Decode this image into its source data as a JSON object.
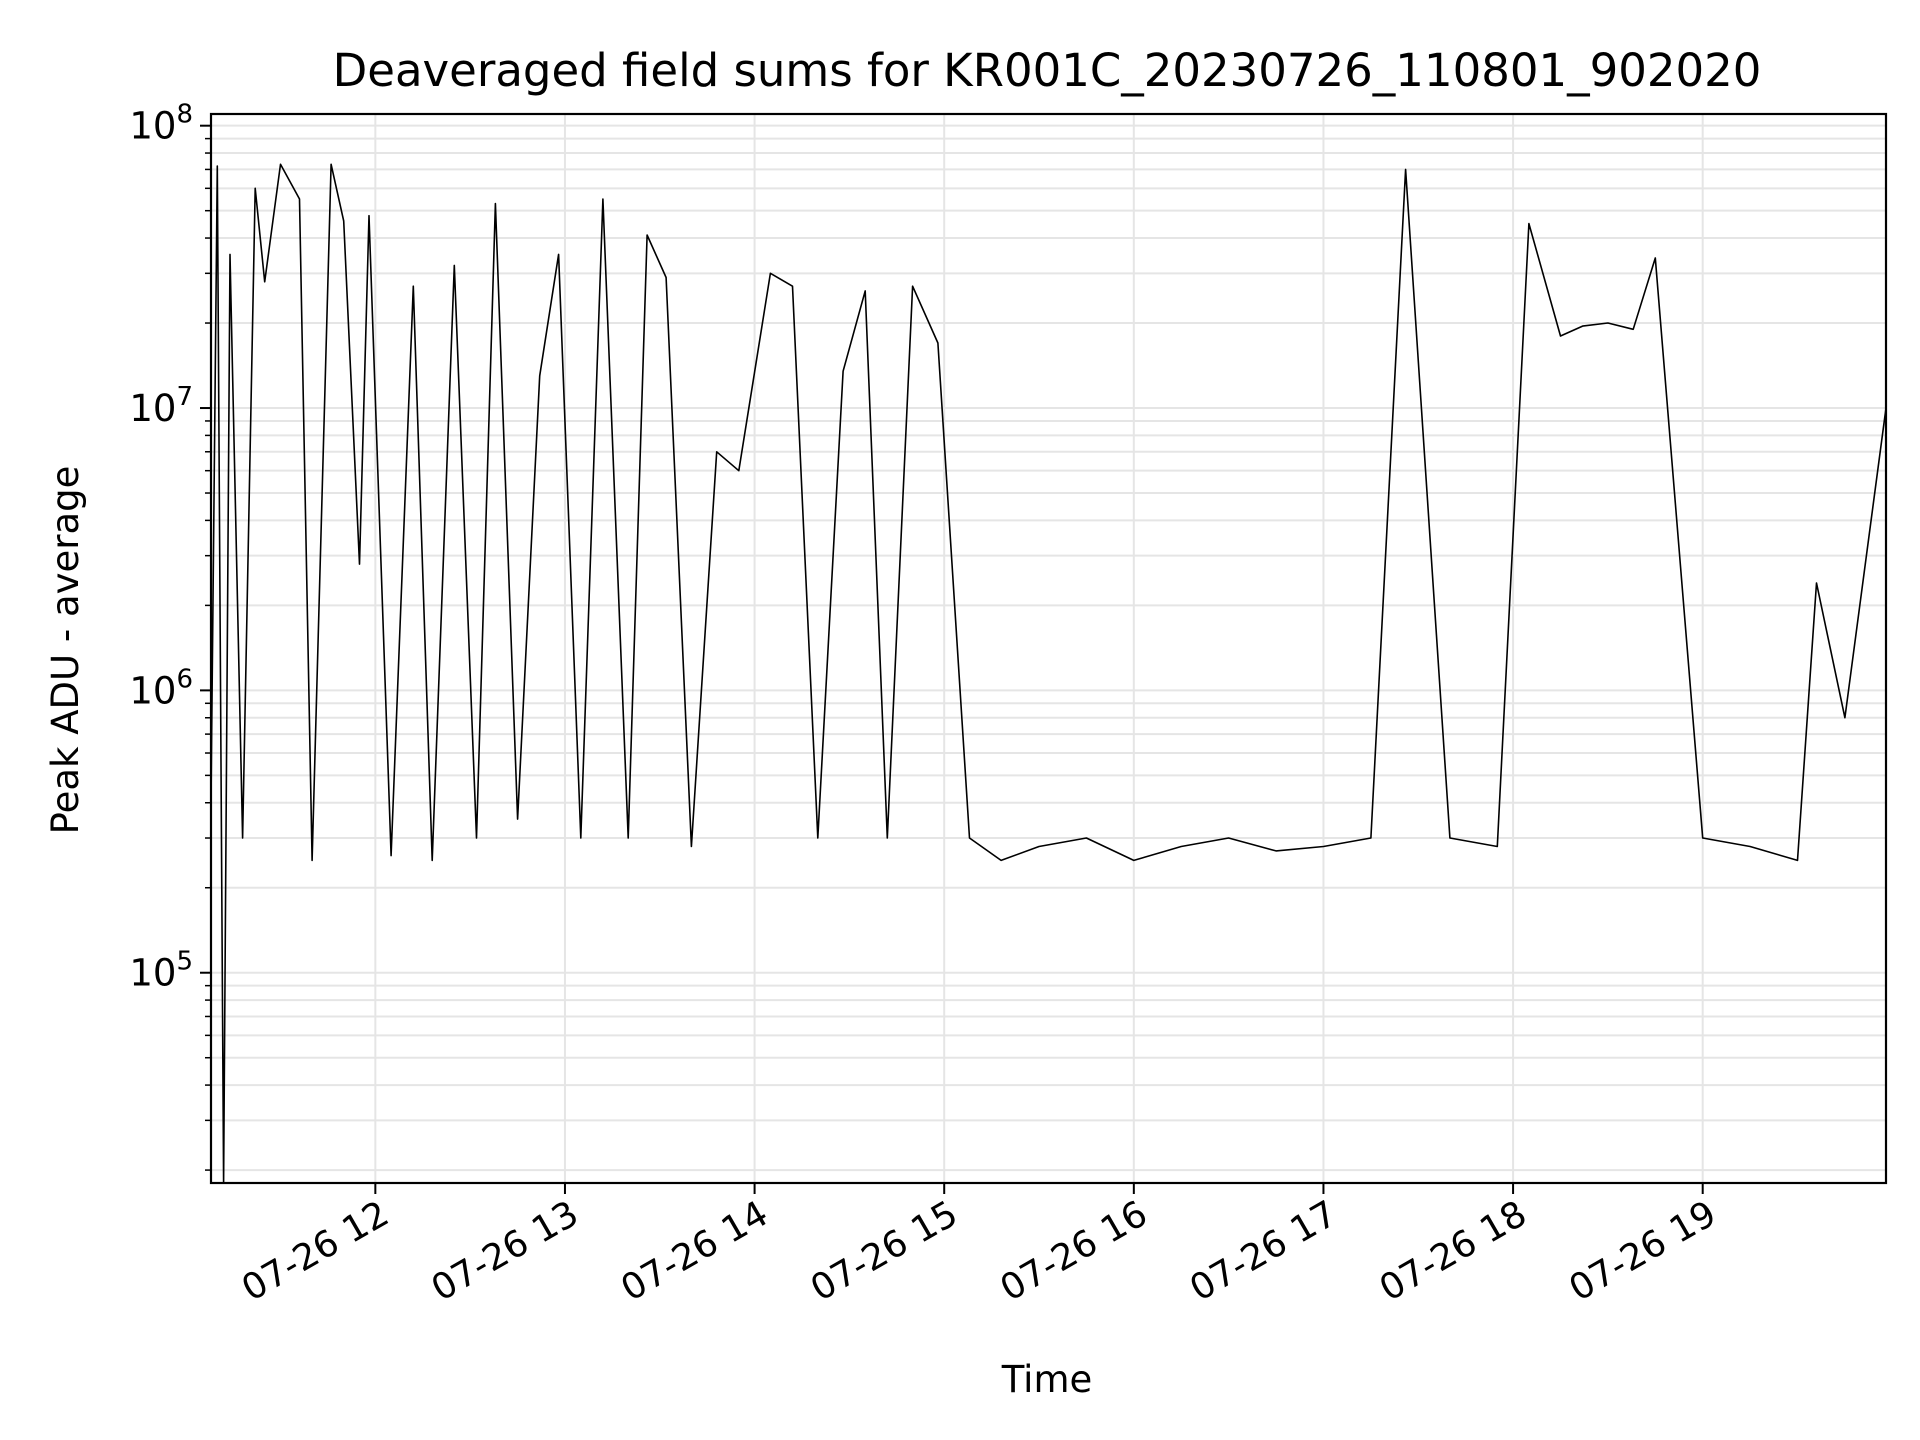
{
  "chart_data": {
    "type": "line",
    "title": "Deaveraged field sums for KR001C_20230726_110801_902020",
    "xlabel": "Time",
    "ylabel": "Peak ADU - average",
    "yscale": "log",
    "ylim": [
      18000,
      110000000
    ],
    "xlim": [
      "2023-07-26 11:08",
      "2023-07-26 19:58"
    ],
    "grid": true,
    "line_color": "#000000",
    "grid_color": "#e5e5e5",
    "x_ticks": [
      {
        "value": "2023-07-26 12:00",
        "label": "07-26 12"
      },
      {
        "value": "2023-07-26 13:00",
        "label": "07-26 13"
      },
      {
        "value": "2023-07-26 14:00",
        "label": "07-26 14"
      },
      {
        "value": "2023-07-26 15:00",
        "label": "07-26 15"
      },
      {
        "value": "2023-07-26 16:00",
        "label": "07-26 16"
      },
      {
        "value": "2023-07-26 17:00",
        "label": "07-26 17"
      },
      {
        "value": "2023-07-26 18:00",
        "label": "07-26 18"
      },
      {
        "value": "2023-07-26 19:00",
        "label": "07-26 19"
      }
    ],
    "y_ticks": [
      {
        "value": 100000,
        "base": "10",
        "exp": "5"
      },
      {
        "value": 1000000,
        "base": "10",
        "exp": "6"
      },
      {
        "value": 10000000,
        "base": "10",
        "exp": "7"
      },
      {
        "value": 100000000,
        "base": "10",
        "exp": "8"
      }
    ],
    "series": [
      {
        "x": [
          "2023-07-26 11:08",
          "2023-07-26 11:10",
          "2023-07-26 11:12",
          "2023-07-26 11:14",
          "2023-07-26 11:18",
          "2023-07-26 11:22",
          "2023-07-26 11:25",
          "2023-07-26 11:30",
          "2023-07-26 11:36",
          "2023-07-26 11:40",
          "2023-07-26 11:46",
          "2023-07-26 11:50",
          "2023-07-26 11:55",
          "2023-07-26 11:58",
          "2023-07-26 12:05",
          "2023-07-26 12:12",
          "2023-07-26 12:18",
          "2023-07-26 12:25",
          "2023-07-26 12:32",
          "2023-07-26 12:38",
          "2023-07-26 12:45",
          "2023-07-26 12:52",
          "2023-07-26 12:58",
          "2023-07-26 13:05",
          "2023-07-26 13:12",
          "2023-07-26 13:20",
          "2023-07-26 13:26",
          "2023-07-26 13:32",
          "2023-07-26 13:40",
          "2023-07-26 13:48",
          "2023-07-26 13:55",
          "2023-07-26 14:05",
          "2023-07-26 14:12",
          "2023-07-26 14:20",
          "2023-07-26 14:28",
          "2023-07-26 14:35",
          "2023-07-26 14:42",
          "2023-07-26 14:50",
          "2023-07-26 14:58",
          "2023-07-26 15:08",
          "2023-07-26 15:18",
          "2023-07-26 15:30",
          "2023-07-26 15:45",
          "2023-07-26 16:00",
          "2023-07-26 16:15",
          "2023-07-26 16:30",
          "2023-07-26 16:45",
          "2023-07-26 17:00",
          "2023-07-26 17:15",
          "2023-07-26 17:26",
          "2023-07-26 17:40",
          "2023-07-26 17:55",
          "2023-07-26 18:05",
          "2023-07-26 18:15",
          "2023-07-26 18:22",
          "2023-07-26 18:30",
          "2023-07-26 18:38",
          "2023-07-26 18:45",
          "2023-07-26 19:00",
          "2023-07-26 19:15",
          "2023-07-26 19:30",
          "2023-07-26 19:36",
          "2023-07-26 19:45",
          "2023-07-26 19:58"
        ],
        "values": [
          400000,
          72000000,
          15000,
          35000000,
          300000,
          60000000,
          28000000,
          73000000,
          55000000,
          250000,
          73000000,
          46000000,
          2800000,
          48000000,
          260000,
          27000000,
          250000,
          32000000,
          300000,
          53000000,
          350000,
          13000000,
          35000000,
          300000,
          55000000,
          300000,
          41000000,
          29000000,
          280000,
          7000000,
          6000000,
          30000000,
          27000000,
          300000,
          13500000,
          26000000,
          300000,
          27000000,
          17000000,
          300000,
          250000,
          280000,
          300000,
          250000,
          280000,
          300000,
          270000,
          280000,
          300000,
          70000000,
          300000,
          280000,
          45000000,
          18000000,
          19500000,
          20000000,
          19000000,
          34000000,
          300000,
          280000,
          250000,
          2400000,
          800000,
          10000000
        ]
      }
    ]
  }
}
